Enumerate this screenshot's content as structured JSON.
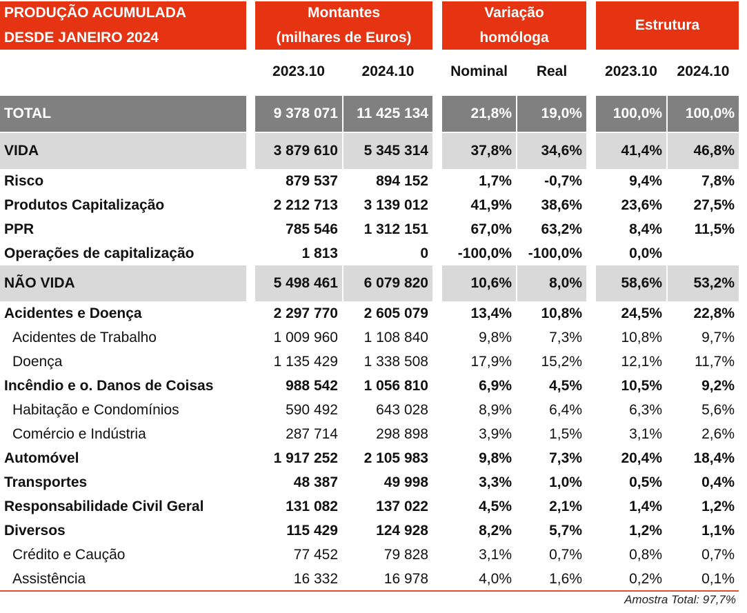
{
  "header": {
    "title_line1": "PRODUÇÃO ACUMULADA",
    "title_line2": "DESDE JANEIRO 2024",
    "montantes_line1": "Montantes",
    "montantes_line2": "(milhares de Euros)",
    "variacao_line1": "Variação",
    "variacao_line2": "homóloga",
    "estrutura": "Estrutura"
  },
  "columns": [
    "2023.10",
    "2024.10",
    "Nominal",
    "Real",
    "2023.10",
    "2024.10"
  ],
  "accent_color": "#e63312",
  "rows": [
    {
      "type": "total",
      "label": "TOTAL",
      "v": [
        "9 378 071",
        "11 425 134",
        "21,8%",
        "19,0%",
        "100,0%",
        "100,0%"
      ]
    },
    {
      "type": "sect",
      "label": "VIDA",
      "v": [
        "3 879 610",
        "5 345 314",
        "37,8%",
        "34,6%",
        "41,4%",
        "46,8%"
      ]
    },
    {
      "type": "bold",
      "label": "Risco",
      "v": [
        "879 537",
        "894 152",
        "1,7%",
        "-0,7%",
        "9,4%",
        "7,8%"
      ]
    },
    {
      "type": "bold",
      "label": "Produtos Capitalização",
      "v": [
        "2 212 713",
        "3 139 012",
        "41,9%",
        "38,6%",
        "23,6%",
        "27,5%"
      ]
    },
    {
      "type": "bold",
      "label": "PPR",
      "v": [
        "785 546",
        "1 312 151",
        "67,0%",
        "63,2%",
        "8,4%",
        "11,5%"
      ]
    },
    {
      "type": "bold",
      "label": "Operações de capitalização",
      "v": [
        "1 813",
        "0",
        "-100,0%",
        "-100,0%",
        "0,0%",
        ""
      ]
    },
    {
      "type": "sect",
      "label": "NÃO VIDA",
      "v": [
        "5 498 461",
        "6 079 820",
        "10,6%",
        "8,0%",
        "58,6%",
        "53,2%"
      ]
    },
    {
      "type": "bold",
      "label": "Acidentes e Doença",
      "v": [
        "2 297 770",
        "2 605 079",
        "13,4%",
        "10,8%",
        "24,5%",
        "22,8%"
      ]
    },
    {
      "type": "sub",
      "label": "Acidentes de Trabalho",
      "v": [
        "1 009 960",
        "1 108 840",
        "9,8%",
        "7,3%",
        "10,8%",
        "9,7%"
      ]
    },
    {
      "type": "sub",
      "label": "Doença",
      "v": [
        "1 135 429",
        "1 338 508",
        "17,9%",
        "15,2%",
        "12,1%",
        "11,7%"
      ]
    },
    {
      "type": "bold",
      "label": "Incêndio e o. Danos de Coisas",
      "v": [
        "988 542",
        "1 056 810",
        "6,9%",
        "4,5%",
        "10,5%",
        "9,2%"
      ]
    },
    {
      "type": "sub",
      "label": "Habitação e Condomínios",
      "v": [
        "590 492",
        "643 028",
        "8,9%",
        "6,4%",
        "6,3%",
        "5,6%"
      ]
    },
    {
      "type": "sub",
      "label": "Comércio e Indústria",
      "v": [
        "287 714",
        "298 898",
        "3,9%",
        "1,5%",
        "3,1%",
        "2,6%"
      ]
    },
    {
      "type": "bold",
      "label": "Automóvel",
      "v": [
        "1 917 252",
        "2 105 983",
        "9,8%",
        "7,3%",
        "20,4%",
        "18,4%"
      ]
    },
    {
      "type": "bold",
      "label": "Transportes",
      "v": [
        "48 387",
        "49 998",
        "3,3%",
        "1,0%",
        "0,5%",
        "0,4%"
      ]
    },
    {
      "type": "bold",
      "label": "Responsabilidade Civil Geral",
      "v": [
        "131 082",
        "137 022",
        "4,5%",
        "2,1%",
        "1,4%",
        "1,2%"
      ]
    },
    {
      "type": "bold",
      "label": "Diversos",
      "v": [
        "115 429",
        "124 928",
        "8,2%",
        "5,7%",
        "1,2%",
        "1,1%"
      ]
    },
    {
      "type": "sub",
      "label": "Crédito e Caução",
      "v": [
        "77 452",
        "79 828",
        "3,1%",
        "0,7%",
        "0,8%",
        "0,7%"
      ]
    },
    {
      "type": "sub",
      "label": "Assistência",
      "v": [
        "16 332",
        "16 978",
        "4,0%",
        "1,6%",
        "0,2%",
        "0,1%"
      ]
    }
  ],
  "footer": "Amostra Total: 97,7%"
}
